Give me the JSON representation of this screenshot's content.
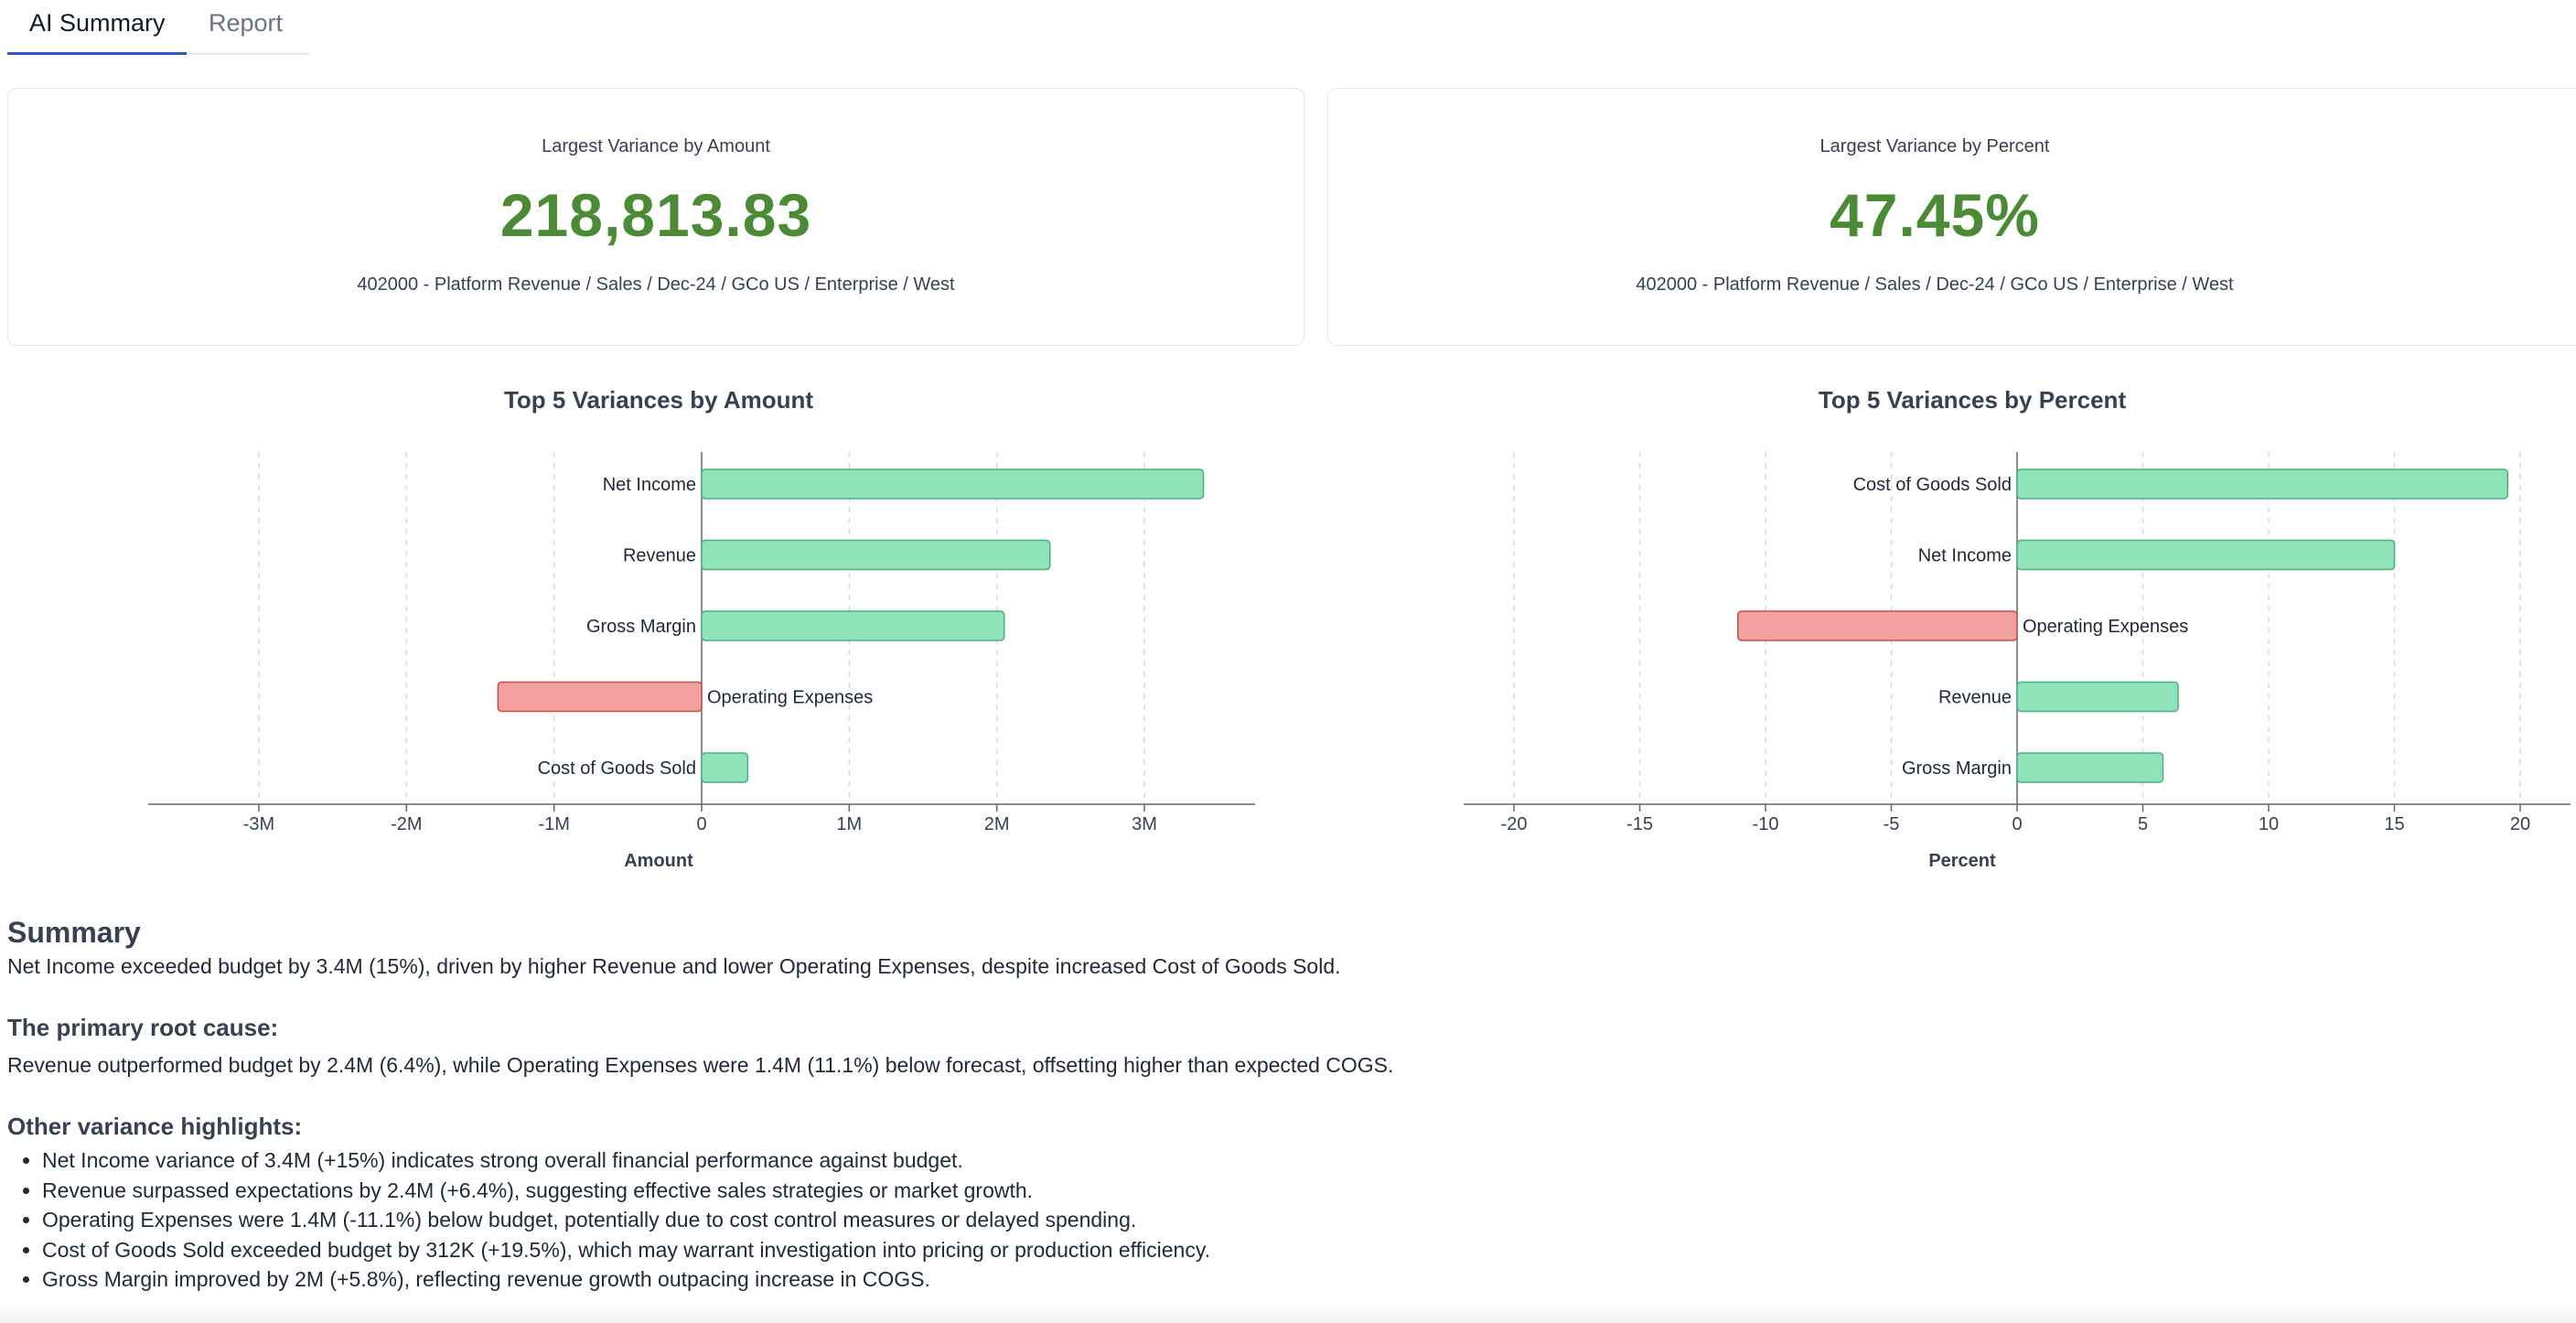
{
  "tabs": [
    {
      "label": "AI Summary",
      "active": true
    },
    {
      "label": "Report",
      "active": false
    }
  ],
  "cards": {
    "amount": {
      "label": "Largest Variance by Amount",
      "value": "218,813.83",
      "path": "402000 - Platform Revenue / Sales / Dec-24 / GCo US / Enterprise / West"
    },
    "percent": {
      "label": "Largest Variance by Percent",
      "value": "47.45%",
      "path": "402000 - Platform Revenue / Sales / Dec-24 / GCo US / Enterprise / West"
    }
  },
  "chart_data": [
    {
      "type": "bar",
      "orientation": "horizontal",
      "title": "Top 5 Variances by Amount",
      "xlabel": "Amount",
      "ylabel": "",
      "categories": [
        "Net Income",
        "Revenue",
        "Gross Margin",
        "Operating Expenses",
        "Cost of Goods Sold"
      ],
      "values": [
        3400000,
        2360000,
        2050000,
        -1380000,
        312000
      ],
      "xlim": [
        -3750000,
        3750000
      ],
      "xticks": [
        -3000000,
        -2000000,
        -1000000,
        0,
        1000000,
        2000000,
        3000000
      ],
      "xtick_labels": [
        "-3M",
        "-2M",
        "-1M",
        "0",
        "1M",
        "2M",
        "3M"
      ],
      "grid": "vertical dashed",
      "colors": {
        "positive": "#8fe3b9",
        "positive_stroke": "#4caf7d",
        "negative": "#f2a0a0",
        "negative_stroke": "#c0504d"
      }
    },
    {
      "type": "bar",
      "orientation": "horizontal",
      "title": "Top 5 Variances by Percent",
      "xlabel": "Percent",
      "ylabel": "",
      "categories": [
        "Cost of Goods Sold",
        "Net Income",
        "Operating Expenses",
        "Revenue",
        "Gross Margin"
      ],
      "values": [
        19.5,
        15,
        -11.1,
        6.4,
        5.8
      ],
      "xlim": [
        -22,
        22
      ],
      "xticks": [
        -20,
        -15,
        -10,
        -5,
        0,
        5,
        10,
        15,
        20
      ],
      "xtick_labels": [
        "-20",
        "-15",
        "-10",
        "-5",
        "0",
        "5",
        "10",
        "15",
        "20"
      ],
      "grid": "vertical dashed",
      "colors": {
        "positive": "#8fe3b9",
        "positive_stroke": "#4caf7d",
        "negative": "#f2a0a0",
        "negative_stroke": "#c0504d"
      }
    }
  ],
  "summary": {
    "heading": "Summary",
    "text": "Net Income exceeded budget by 3.4M (15%), driven by higher Revenue and lower Operating Expenses, despite increased Cost of Goods Sold.",
    "root_cause_title": "The primary root cause:",
    "root_cause_text": "Revenue outperformed budget by 2.4M (6.4%), while Operating Expenses were 1.4M (11.1%) below forecast, offsetting higher than expected COGS.",
    "highlights_title": "Other variance highlights:",
    "highlights": [
      "Net Income variance of 3.4M (+15%) indicates strong overall financial performance against budget.",
      "Revenue surpassed expectations by 2.4M (+6.4%), suggesting effective sales strategies or market growth.",
      "Operating Expenses were 1.4M (-11.1%) below budget, potentially due to cost control measures or delayed spending.",
      "Cost of Goods Sold exceeded budget by 312K (+19.5%), which may warrant investigation into pricing or production efficiency.",
      "Gross Margin improved by 2M (+5.8%), reflecting revenue growth outpacing increase in COGS."
    ]
  }
}
